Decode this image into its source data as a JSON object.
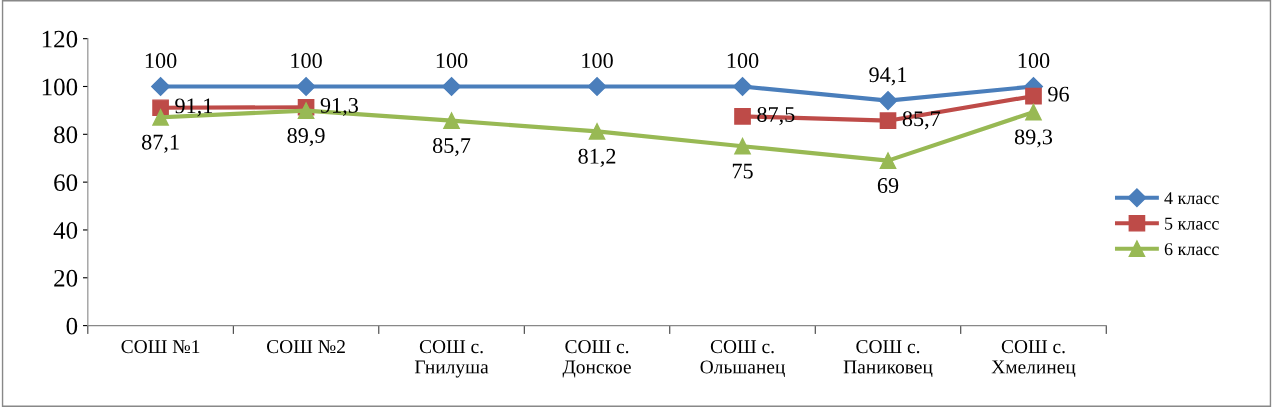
{
  "chart_data": {
    "type": "line",
    "categories": [
      "СОШ №1",
      "СОШ №2",
      "СОШ с.\nГнилуша",
      "СОШ с.\nДонское",
      "СОШ с.\nОльшанец",
      "СОШ с.\nПаниковец",
      "СОШ с.\nХмелинец"
    ],
    "series": [
      {
        "name": "4 класс",
        "color": "#4a7ebb",
        "marker": "diamond",
        "values": [
          100,
          100,
          100,
          100,
          100,
          94.1,
          100
        ],
        "value_labels": [
          "100",
          "100",
          "100",
          "100",
          "100",
          "94,1",
          "100"
        ]
      },
      {
        "name": "5 класс",
        "color": "#be4b48",
        "marker": "square",
        "values": [
          91.1,
          91.3,
          null,
          null,
          87.5,
          85.7,
          96
        ],
        "value_labels": [
          "91,1",
          "91,3",
          null,
          null,
          "87,5",
          "85,7",
          "96"
        ]
      },
      {
        "name": "6 класс",
        "color": "#98b954",
        "marker": "triangle",
        "values": [
          87.1,
          89.9,
          85.7,
          81.2,
          75,
          69,
          89.3
        ],
        "value_labels": [
          "87,1",
          "89,9",
          "85,7",
          "81,2",
          "75",
          "69",
          "89,3"
        ]
      }
    ],
    "ylim": [
      0,
      120
    ],
    "yticks": [
      0,
      20,
      40,
      60,
      80,
      100,
      120
    ],
    "grid": false,
    "legend": "right"
  }
}
